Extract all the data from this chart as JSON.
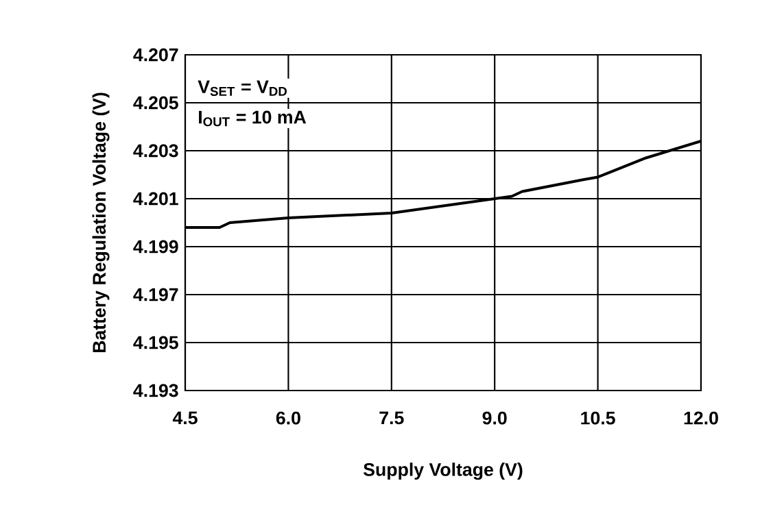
{
  "chart_data": {
    "type": "line",
    "xlabel": "Supply Voltage (V)",
    "ylabel": "Battery Regulation Voltage (V)",
    "annotations": [
      "V$_{SET}$ = V$_{DD}$",
      "I$_{OUT}$ = 10 mA"
    ],
    "x": [
      4.5,
      5.0,
      5.15,
      6.0,
      7.5,
      8.25,
      9.0,
      9.25,
      9.4,
      10.3,
      10.5,
      11.2,
      12.0
    ],
    "series": [
      {
        "color": "#000000",
        "values": [
          4.1998,
          4.1998,
          4.2,
          4.2002,
          4.2004,
          4.2007,
          4.201,
          4.2011,
          4.2013,
          4.2018,
          4.2019,
          4.2027,
          4.2034
        ]
      }
    ],
    "xlim": [
      4.5,
      12.0
    ],
    "ylim": [
      4.193,
      4.207
    ],
    "xticks": [
      4.5,
      {
        "value": 6,
        "label": "6.0"
      },
      7.5,
      {
        "value": 9,
        "label": "9.0"
      },
      10.5,
      {
        "value": 12,
        "label": "12.0"
      }
    ],
    "yticks": [
      4.193,
      4.195,
      4.197,
      4.199,
      4.201,
      4.203,
      4.205,
      4.207
    ],
    "grid": true
  }
}
